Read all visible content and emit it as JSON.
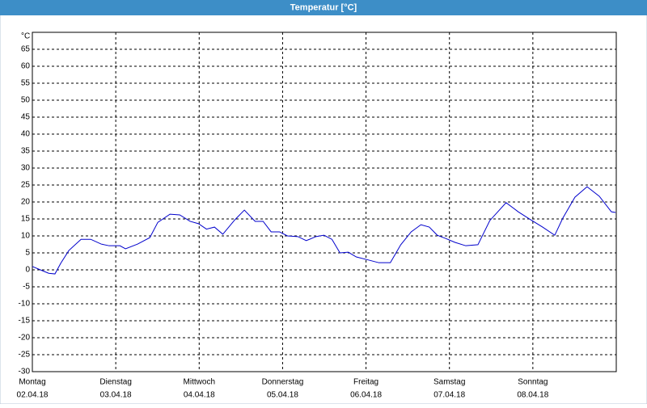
{
  "chart_data": {
    "type": "line",
    "title": "Temperatur [°C]",
    "y_unit": "°C",
    "x": [
      0,
      2.3,
      4.7,
      6.5,
      8.2,
      10.5,
      14,
      16.8,
      19.8,
      22.1,
      25.2,
      26.8,
      30.3,
      33.8,
      36.1,
      39.6,
      42.4,
      45.4,
      47.8,
      50.1,
      52.4,
      54.8,
      58.3,
      61,
      64.1,
      66.4,
      68.7,
      71.1,
      73.4,
      76.4,
      78.8,
      81.6,
      83.9,
      86.2,
      88.5,
      90.9,
      93.2,
      96.7,
      99.7,
      103,
      106,
      109,
      111.8,
      114.2,
      116.5,
      118.8,
      121.6,
      124.7,
      128.2,
      131.6,
      136.3,
      139.8,
      143.3,
      146.8,
      150.3,
      152.6,
      156.1,
      159.6,
      163.1,
      166.6,
      167.8
    ],
    "series": [
      {
        "name": "Temperatur",
        "color": "#0000cc",
        "values": [
          1,
          0,
          -1,
          -1.2,
          2,
          5.7,
          9,
          9,
          7.6,
          7.1,
          7.1,
          6.2,
          7.6,
          9.5,
          14,
          16.4,
          16.2,
          14.3,
          13.6,
          12,
          12.6,
          10.5,
          14.8,
          17.6,
          14.3,
          14.3,
          11.2,
          11.2,
          10,
          9.8,
          8.6,
          9.8,
          10.2,
          9,
          5,
          5.2,
          3.8,
          2.9,
          2.1,
          2.1,
          7.4,
          11.2,
          13.3,
          12.6,
          10.2,
          9.3,
          8.1,
          7.1,
          7.4,
          14.5,
          19.8,
          17.1,
          14.8,
          12.6,
          10.2,
          15.2,
          21.4,
          24.5,
          21.7,
          17.1,
          16.9
        ]
      }
    ],
    "xlim": [
      0,
      168
    ],
    "xticks": [
      {
        "value": 0,
        "label": "Montag",
        "date": "02.04.18"
      },
      {
        "value": 24,
        "label": "Dienstag",
        "date": "03.04.18"
      },
      {
        "value": 48,
        "label": "Mittwoch",
        "date": "04.04.18"
      },
      {
        "value": 72,
        "label": "Donnerstag",
        "date": "05.04.18"
      },
      {
        "value": 96,
        "label": "Freitag",
        "date": "06.04.18"
      },
      {
        "value": 120,
        "label": "Samstag",
        "date": "07.04.18"
      },
      {
        "value": 144,
        "label": "Sonntag",
        "date": "08.04.18"
      }
    ],
    "ylim": [
      -30,
      70
    ],
    "yticks": [
      -30,
      -25,
      -20,
      -15,
      -10,
      -5,
      0,
      5,
      10,
      15,
      20,
      25,
      30,
      35,
      40,
      45,
      50,
      55,
      60,
      65
    ],
    "grid": true
  }
}
